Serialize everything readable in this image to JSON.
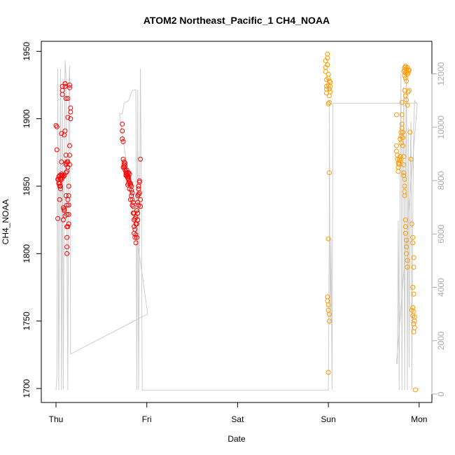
{
  "chart_data": {
    "type": "scatter",
    "title": "ATOM2 Northeast_Pacific_1 CH4_NOAA",
    "xlabel": "Date",
    "ylabel": "CH4_NOAA",
    "x_ticks": [
      "Thu",
      "Fri",
      "Sat",
      "Sun",
      "Mon"
    ],
    "x_range_days": [
      0,
      4
    ],
    "ylim": [
      1700,
      1950
    ],
    "y_ticks": [
      1700,
      1750,
      1800,
      1850,
      1900,
      1950
    ],
    "y2lim": [
      0,
      12000
    ],
    "y2_ticks": [
      0,
      2000,
      4000,
      6000,
      8000,
      10000,
      12000
    ],
    "grid": false,
    "colors": {
      "series_early": "#ff0000",
      "series_late": "#ff9900",
      "altitude_line": "#cccccc",
      "axis": "#000000",
      "axis_right": "#aaaaaa"
    },
    "series": [
      {
        "color": "#ff0000",
        "points": [
          [
            0.0,
            1895
          ],
          [
            0.01,
            1894
          ],
          [
            0.01,
            1877
          ],
          [
            0.02,
            1855
          ],
          [
            0.02,
            1826
          ],
          [
            0.03,
            1852
          ],
          [
            0.03,
            1857
          ],
          [
            0.04,
            1858
          ],
          [
            0.04,
            1850
          ],
          [
            0.04,
            1840
          ],
          [
            0.05,
            1855
          ],
          [
            0.05,
            1848
          ],
          [
            0.05,
            1856
          ],
          [
            0.06,
            1858
          ],
          [
            0.06,
            1889
          ],
          [
            0.06,
            1868
          ],
          [
            0.06,
            1855
          ],
          [
            0.07,
            1918
          ],
          [
            0.07,
            1921
          ],
          [
            0.07,
            1924
          ],
          [
            0.08,
            1857
          ],
          [
            0.08,
            1834
          ],
          [
            0.08,
            1825
          ],
          [
            0.09,
            1832
          ],
          [
            0.09,
            1858
          ],
          [
            0.09,
            1888
          ],
          [
            0.1,
            1891
          ],
          [
            0.1,
            1926
          ],
          [
            0.1,
            1924
          ],
          [
            0.1,
            1926
          ],
          [
            0.11,
            1915
          ],
          [
            0.11,
            1873
          ],
          [
            0.11,
            1866
          ],
          [
            0.11,
            1860
          ],
          [
            0.11,
            1843
          ],
          [
            0.12,
            1836
          ],
          [
            0.12,
            1829
          ],
          [
            0.12,
            1820
          ],
          [
            0.12,
            1812
          ],
          [
            0.12,
            1805
          ],
          [
            0.12,
            1800
          ],
          [
            0.13,
            1840
          ],
          [
            0.13,
            1868
          ],
          [
            0.13,
            1901
          ],
          [
            0.13,
            1915
          ],
          [
            0.14,
            1850
          ],
          [
            0.14,
            1843
          ],
          [
            0.14,
            1836
          ],
          [
            0.14,
            1829
          ],
          [
            0.14,
            1822
          ],
          [
            0.15,
            1880
          ],
          [
            0.15,
            1873
          ],
          [
            0.15,
            1866
          ],
          [
            0.15,
            1923
          ],
          [
            0.15,
            1925
          ],
          [
            0.16,
            1908
          ],
          [
            0.16,
            1905
          ],
          [
            0.16,
            1900
          ],
          [
            0.13,
            1864
          ],
          [
            0.12,
            1861
          ],
          [
            0.11,
            1867
          ],
          [
            0.1,
            1828
          ],
          [
            0.09,
            1833
          ],
          [
            0.07,
            1858
          ],
          [
            0.06,
            1859
          ],
          [
            0.05,
            1850
          ],
          [
            0.04,
            1852
          ],
          [
            0.03,
            1855
          ],
          [
            0.12,
            1868
          ],
          [
            0.13,
            1820
          ],
          [
            0.73,
            1896
          ],
          [
            0.73,
            1891
          ],
          [
            0.73,
            1885
          ],
          [
            0.74,
            1883
          ],
          [
            0.74,
            1870
          ],
          [
            0.75,
            1868
          ],
          [
            0.75,
            1866
          ],
          [
            0.76,
            1865
          ],
          [
            0.76,
            1862
          ],
          [
            0.77,
            1861
          ],
          [
            0.77,
            1860
          ],
          [
            0.78,
            1859
          ],
          [
            0.78,
            1858
          ],
          [
            0.79,
            1857
          ],
          [
            0.79,
            1856
          ],
          [
            0.8,
            1855
          ],
          [
            0.8,
            1854
          ],
          [
            0.8,
            1860
          ],
          [
            0.81,
            1853
          ],
          [
            0.81,
            1859
          ],
          [
            0.82,
            1852
          ],
          [
            0.82,
            1851
          ],
          [
            0.83,
            1850
          ],
          [
            0.83,
            1847
          ],
          [
            0.84,
            1845
          ],
          [
            0.84,
            1840
          ],
          [
            0.85,
            1835
          ],
          [
            0.85,
            1830
          ],
          [
            0.86,
            1825
          ],
          [
            0.86,
            1820
          ],
          [
            0.86,
            1815
          ],
          [
            0.87,
            1812
          ],
          [
            0.87,
            1818
          ],
          [
            0.88,
            1822
          ],
          [
            0.88,
            1808
          ],
          [
            0.88,
            1827
          ],
          [
            0.89,
            1832
          ],
          [
            0.89,
            1812
          ],
          [
            0.9,
            1830
          ],
          [
            0.9,
            1838
          ],
          [
            0.9,
            1843
          ],
          [
            0.91,
            1850
          ],
          [
            0.91,
            1848
          ],
          [
            0.91,
            1836
          ],
          [
            0.92,
            1853
          ],
          [
            0.92,
            1854
          ],
          [
            0.92,
            1845
          ],
          [
            0.93,
            1870
          ],
          [
            0.93,
            1835
          ],
          [
            0.93,
            1840
          ],
          [
            0.85,
            1838
          ],
          [
            0.86,
            1830
          ],
          [
            0.87,
            1826
          ],
          [
            0.88,
            1814
          ],
          [
            0.89,
            1822
          ],
          [
            0.9,
            1825
          ],
          [
            0.91,
            1844
          ],
          [
            0.84,
            1836
          ],
          [
            0.83,
            1843
          ],
          [
            0.82,
            1840
          ],
          [
            0.81,
            1848
          ],
          [
            0.8,
            1857
          ],
          [
            0.79,
            1860
          ],
          [
            0.78,
            1862
          ],
          [
            0.77,
            1858
          ],
          [
            0.76,
            1867
          ],
          [
            0.75,
            1864
          ],
          [
            0.74,
            1864
          ],
          [
            0.8,
            1852
          ],
          [
            0.79,
            1851
          ]
        ]
      },
      {
        "color": "#ff9900",
        "points": [
          [
            2.97,
            1943
          ],
          [
            2.97,
            1938
          ],
          [
            2.97,
            1935
          ],
          [
            2.98,
            1929
          ],
          [
            2.98,
            1924
          ],
          [
            2.98,
            1922
          ],
          [
            2.98,
            1919
          ],
          [
            2.99,
            1948
          ],
          [
            2.99,
            1945
          ],
          [
            2.99,
            1940
          ],
          [
            3.0,
            1933
          ],
          [
            3.0,
            1930
          ],
          [
            3.0,
            1925
          ],
          [
            3.01,
            1928
          ],
          [
            3.01,
            1922
          ],
          [
            3.01,
            1917
          ],
          [
            3.01,
            1912
          ],
          [
            3.02,
            1927
          ],
          [
            3.02,
            1924
          ],
          [
            3.02,
            1920
          ],
          [
            3.0,
            1911
          ],
          [
            3.01,
            1860
          ],
          [
            3.0,
            1811
          ],
          [
            2.99,
            1768
          ],
          [
            2.99,
            1765
          ],
          [
            3.0,
            1762
          ],
          [
            3.0,
            1758
          ],
          [
            3.01,
            1755
          ],
          [
            3.01,
            1750
          ],
          [
            3.0,
            1712
          ],
          [
            3.75,
            1903
          ],
          [
            3.75,
            1880
          ],
          [
            3.75,
            1876
          ],
          [
            3.76,
            1873
          ],
          [
            3.76,
            1870
          ],
          [
            3.77,
            1867
          ],
          [
            3.77,
            1864
          ],
          [
            3.77,
            1861
          ],
          [
            3.78,
            1870
          ],
          [
            3.78,
            1867
          ],
          [
            3.78,
            1866
          ],
          [
            3.79,
            1872
          ],
          [
            3.79,
            1869
          ],
          [
            3.79,
            1885
          ],
          [
            3.8,
            1890
          ],
          [
            3.8,
            1887
          ],
          [
            3.8,
            1882
          ],
          [
            3.81,
            1903
          ],
          [
            3.81,
            1896
          ],
          [
            3.81,
            1893
          ],
          [
            3.81,
            1912
          ],
          [
            3.82,
            1890
          ],
          [
            3.82,
            1886
          ],
          [
            3.82,
            1880
          ],
          [
            3.83,
            1872
          ],
          [
            3.83,
            1866
          ],
          [
            3.83,
            1860
          ],
          [
            3.83,
            1858
          ],
          [
            3.84,
            1855
          ],
          [
            3.84,
            1850
          ],
          [
            3.84,
            1846
          ],
          [
            3.84,
            1843
          ],
          [
            3.85,
            1825
          ],
          [
            3.85,
            1820
          ],
          [
            3.85,
            1815
          ],
          [
            3.86,
            1810
          ],
          [
            3.86,
            1805
          ],
          [
            3.86,
            1800
          ],
          [
            3.87,
            1795
          ],
          [
            3.87,
            1790
          ],
          [
            3.83,
            1935
          ],
          [
            3.84,
            1938
          ],
          [
            3.84,
            1936
          ],
          [
            3.85,
            1934
          ],
          [
            3.85,
            1939
          ],
          [
            3.86,
            1937
          ],
          [
            3.86,
            1935
          ],
          [
            3.87,
            1938
          ],
          [
            3.87,
            1933
          ],
          [
            3.88,
            1936
          ],
          [
            3.88,
            1934
          ],
          [
            3.89,
            1936
          ],
          [
            3.84,
            1932
          ],
          [
            3.85,
            1930
          ],
          [
            3.86,
            1928
          ],
          [
            3.84,
            1921
          ],
          [
            3.85,
            1917
          ],
          [
            3.86,
            1914
          ],
          [
            3.87,
            1910
          ],
          [
            3.88,
            1920
          ],
          [
            3.89,
            1921
          ],
          [
            3.9,
            1890
          ],
          [
            3.91,
            1870
          ],
          [
            3.92,
            1822
          ],
          [
            3.93,
            1812
          ],
          [
            3.93,
            1808
          ],
          [
            3.94,
            1797
          ],
          [
            3.94,
            1790
          ],
          [
            3.93,
            1775
          ],
          [
            3.94,
            1770
          ],
          [
            3.93,
            1760
          ],
          [
            3.94,
            1757
          ],
          [
            3.95,
            1753
          ],
          [
            3.95,
            1750
          ],
          [
            3.94,
            1748
          ],
          [
            3.95,
            1745
          ],
          [
            3.94,
            1742
          ],
          [
            3.96,
            1699
          ],
          [
            3.92,
            1758
          ],
          [
            3.93,
            1754
          ]
        ]
      }
    ],
    "altitude_path": [
      [
        0.0,
        150
      ],
      [
        0.01,
        700
      ],
      [
        0.02,
        12200
      ],
      [
        0.03,
        150
      ],
      [
        0.04,
        6000
      ],
      [
        0.05,
        12200
      ],
      [
        0.06,
        150
      ],
      [
        0.07,
        11000
      ],
      [
        0.08,
        200
      ],
      [
        0.09,
        8000
      ],
      [
        0.1,
        12500
      ],
      [
        0.11,
        12000
      ],
      [
        0.12,
        6000
      ],
      [
        0.13,
        150
      ],
      [
        0.14,
        11500
      ],
      [
        0.15,
        12300
      ],
      [
        0.16,
        1500
      ],
      [
        0.16,
        1500
      ],
      [
        1.01,
        3000
      ],
      [
        0.7,
        10500
      ],
      [
        0.73,
        10500
      ],
      [
        0.75,
        10900
      ],
      [
        0.8,
        11000
      ],
      [
        0.83,
        11300
      ],
      [
        0.85,
        11400
      ],
      [
        0.88,
        11400
      ],
      [
        0.89,
        150
      ],
      [
        0.9,
        11400
      ],
      [
        0.91,
        150
      ],
      [
        0.92,
        6000
      ],
      [
        0.93,
        12200
      ],
      [
        0.94,
        8000
      ],
      [
        0.95,
        150
      ],
      [
        3.0,
        150
      ],
      [
        3.01,
        6000
      ],
      [
        3.01,
        11000
      ],
      [
        3.02,
        2600
      ],
      [
        3.03,
        5800
      ],
      [
        3.04,
        150
      ],
      [
        3.05,
        10900
      ],
      [
        3.98,
        10900
      ],
      [
        3.75,
        1150
      ],
      [
        3.76,
        1150
      ],
      [
        3.77,
        6500
      ],
      [
        3.78,
        150
      ],
      [
        3.79,
        8000
      ],
      [
        3.8,
        12000
      ],
      [
        3.81,
        150
      ],
      [
        3.82,
        8500
      ],
      [
        3.83,
        11500
      ],
      [
        3.84,
        150
      ],
      [
        3.85,
        8000
      ],
      [
        3.86,
        12300
      ],
      [
        3.87,
        150
      ],
      [
        3.88,
        10000
      ],
      [
        3.89,
        1000
      ],
      [
        3.9,
        8000
      ],
      [
        3.91,
        10200
      ],
      [
        3.92,
        150
      ],
      [
        3.93,
        7000
      ],
      [
        3.94,
        10000
      ],
      [
        3.95,
        11000
      ],
      [
        3.97,
        10900
      ]
    ]
  }
}
